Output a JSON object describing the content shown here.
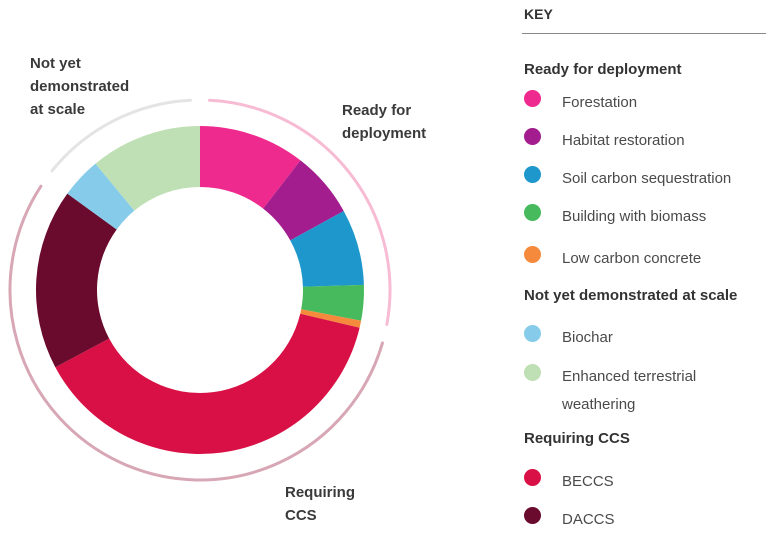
{
  "key": {
    "title": "KEY",
    "groups": [
      {
        "label": "Ready for deployment"
      },
      {
        "label": "Not yet demonstrated at scale"
      },
      {
        "label": "Requiring CCS"
      }
    ]
  },
  "ring_labels": {
    "not_yet": "Not yet\ndemonstrated\nat scale",
    "ready": "Ready for\ndeployment",
    "ccs": "Requiring\nCCS"
  },
  "chart_data": {
    "type": "pie",
    "donut": true,
    "values_unit": "share of total (%), estimated",
    "series": [
      {
        "name": "Forestation",
        "group": "Ready for deployment",
        "value": 10.5,
        "color": "#ef2a8e"
      },
      {
        "name": "Habitat restoration",
        "group": "Ready for deployment",
        "value": 6.5,
        "color": "#a31d8e"
      },
      {
        "name": "Soil carbon sequestration",
        "group": "Ready for deployment",
        "value": 7.5,
        "color": "#1e97cd"
      },
      {
        "name": "Building with biomass",
        "group": "Ready for deployment",
        "value": 3.5,
        "color": "#46ba5c"
      },
      {
        "name": "Low carbon concrete",
        "group": "Ready for deployment",
        "value": 0.7,
        "color": "#f58a3c"
      },
      {
        "name": "BECCS",
        "group": "Requiring CCS",
        "value": 38.5,
        "color": "#d81045"
      },
      {
        "name": "DACCS",
        "group": "Requiring CCS",
        "value": 17.8,
        "color": "#6a0a2d"
      },
      {
        "name": "Biochar",
        "group": "Not yet demonstrated at scale",
        "value": 4.0,
        "color": "#86ccea"
      },
      {
        "name": "Enhanced terrestrial weathering",
        "group": "Not yet demonstrated at scale",
        "value": 11.0,
        "color": "#bfe0b4"
      }
    ],
    "group_arc_colors": {
      "Ready for deployment": "#f7bcd3",
      "Requiring CCS": "#d8a7b5",
      "Not yet demonstrated at scale": "#e4e4e4"
    }
  }
}
